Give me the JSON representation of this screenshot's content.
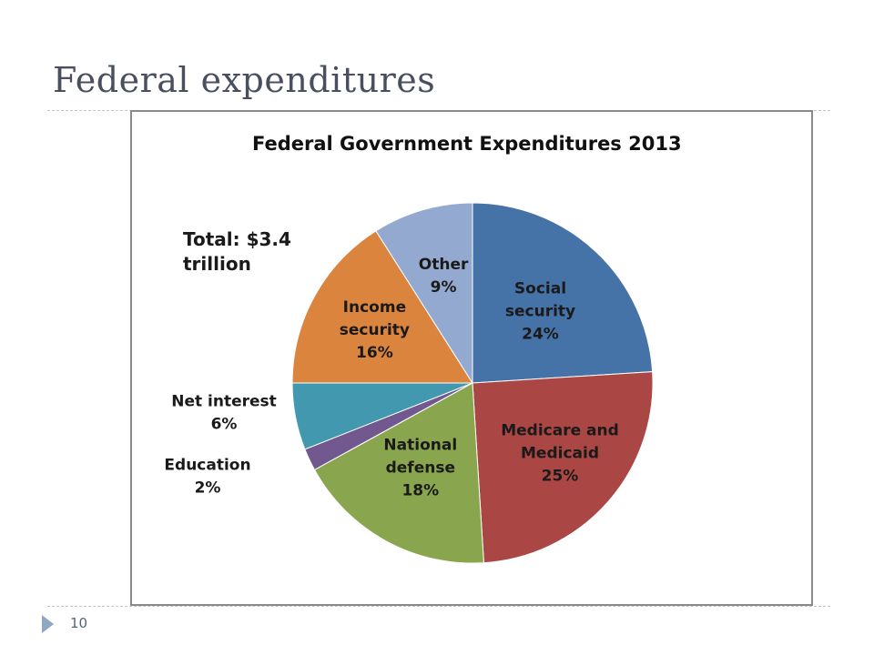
{
  "slide": {
    "title": "Federal expenditures",
    "page_number": "10"
  },
  "chart_data": {
    "type": "pie",
    "title": "Federal Government Expenditures 2013",
    "note": [
      "Total: $3.4",
      "trillion"
    ],
    "slices": [
      {
        "name": "Social security",
        "label_lines": [
          "Social",
          "security",
          "24%"
        ],
        "value": 24,
        "color": "#4572a7",
        "label_placement": "inside"
      },
      {
        "name": "Medicare and Medicaid",
        "label_lines": [
          "Medicare and",
          "Medicaid",
          "25%"
        ],
        "value": 25,
        "color": "#aa4643",
        "label_placement": "inside"
      },
      {
        "name": "National defense",
        "label_lines": [
          "National",
          "defense",
          "18%"
        ],
        "value": 18,
        "color": "#89a54e",
        "label_placement": "inside"
      },
      {
        "name": "Education",
        "label_lines": [
          "Education",
          "2%"
        ],
        "value": 2,
        "color": "#71588f",
        "label_placement": "outside"
      },
      {
        "name": "Net interest",
        "label_lines": [
          "Net interest",
          "6%"
        ],
        "value": 6,
        "color": "#4198af",
        "label_placement": "outside"
      },
      {
        "name": "Income security",
        "label_lines": [
          "Income",
          "security",
          "16%"
        ],
        "value": 16,
        "color": "#db843d",
        "label_placement": "inside"
      },
      {
        "name": "Other",
        "label_lines": [
          "Other",
          "9%"
        ],
        "value": 9,
        "color": "#93a9cf",
        "label_placement": "inside"
      }
    ],
    "start": "12 o'clock",
    "direction": "clockwise",
    "legend": "none"
  }
}
